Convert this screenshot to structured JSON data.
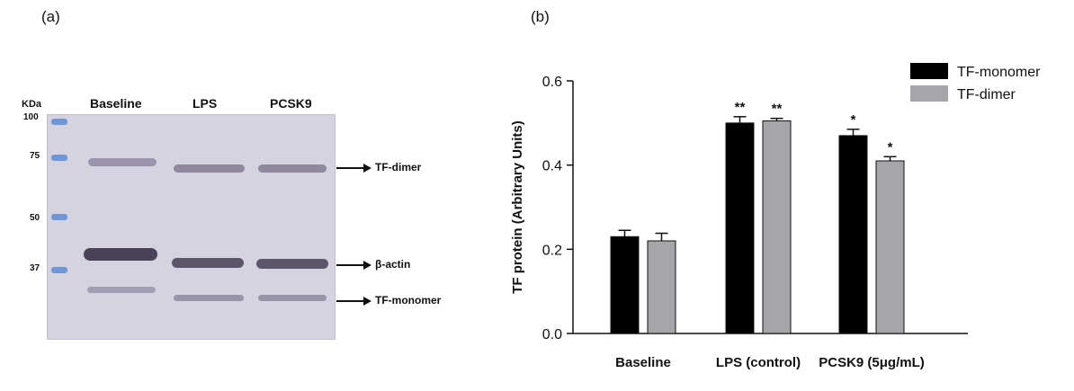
{
  "panel_a": {
    "label": "(a)",
    "kda_header": "KDa",
    "lanes": [
      "Baseline",
      "LPS",
      "PCSK9"
    ],
    "markers": [
      "100",
      "75",
      "50",
      "37"
    ],
    "arrows": [
      "TF-dimer",
      "β-actin",
      "TF-monomer"
    ]
  },
  "panel_b": {
    "label": "(b)"
  },
  "chart_data": {
    "type": "bar",
    "title": "",
    "xlabel": "",
    "ylabel": "TF protein (Arbitrary Units)",
    "categories": [
      "Baseline",
      "LPS (control)",
      "PCSK9 (5μg/mL)"
    ],
    "ylim": [
      0.0,
      0.6
    ],
    "yticks": [
      "0.0",
      "0.2",
      "0.4",
      "0.6"
    ],
    "legend_position": "top-right",
    "series": [
      {
        "name": "TF-monomer",
        "color": "#000000",
        "values": [
          0.23,
          0.5,
          0.47
        ],
        "errors": [
          0.015,
          0.015,
          0.015
        ],
        "significance": [
          "",
          "**",
          "*"
        ]
      },
      {
        "name": "TF-dimer",
        "color": "#a6a6aa",
        "values": [
          0.22,
          0.505,
          0.41
        ],
        "errors": [
          0.018,
          0.006,
          0.01
        ],
        "significance": [
          "",
          "**",
          "*"
        ]
      }
    ]
  }
}
